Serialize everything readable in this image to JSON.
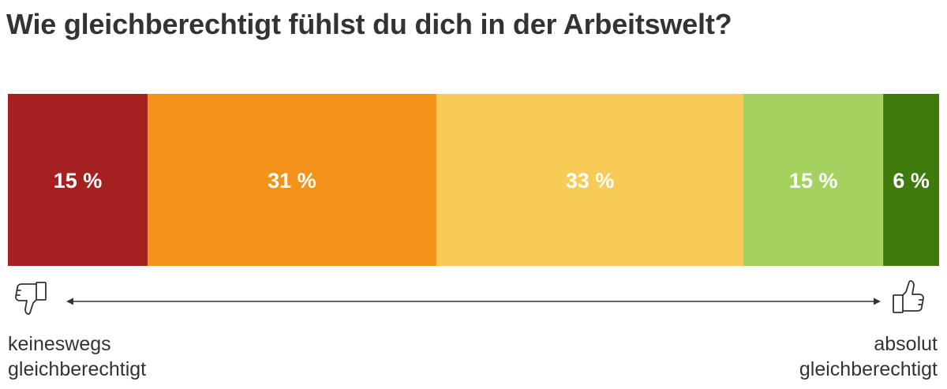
{
  "title": "Wie gleichberechtigt fühlst du dich in der Arbeitswelt?",
  "chart_data": {
    "type": "bar",
    "orientation": "horizontal-stacked-100",
    "title": "Wie gleichberechtigt fühlst du dich in der Arbeitswelt?",
    "unit": "%",
    "segments": [
      {
        "value": 15,
        "label": "15 %",
        "color": "#a5211f"
      },
      {
        "value": 31,
        "label": "31 %",
        "color": "#f39219"
      },
      {
        "value": 33,
        "label": "33 %",
        "color": "#f7cb55"
      },
      {
        "value": 15,
        "label": "15 %",
        "color": "#a3d25e"
      },
      {
        "value": 6,
        "label": "6 %",
        "color": "#3f7a0c"
      }
    ],
    "scale": {
      "left_label": [
        "keineswegs",
        "gleichberechtigt"
      ],
      "right_label": [
        "absolut",
        "gleichberechtigt"
      ],
      "left_icon": "thumbs-down-icon",
      "right_icon": "thumbs-up-icon"
    }
  }
}
